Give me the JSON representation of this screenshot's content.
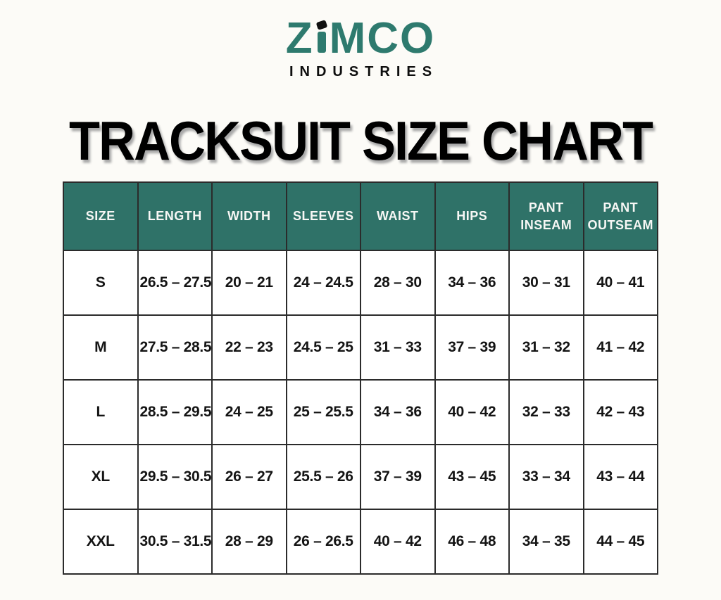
{
  "logo": {
    "brand_part1": "Z",
    "brand_part2": "MCO",
    "brand_full": "ZIMCO",
    "subtitle": "INDUSTRIES"
  },
  "title": "TRACKSUIT SIZE CHART",
  "colors": {
    "logo_teal": "#2E7A6E",
    "header_teal": "#2F7268",
    "page_background": "#FCFBF7",
    "grid_line": "#2B2B2B"
  },
  "table": {
    "columns": [
      "SIZE",
      "LENGTH",
      "WIDTH",
      "SLEEVES",
      "WAIST",
      "HIPS",
      "PANT INSEAM",
      "PANT OUTSEAM"
    ],
    "rows": [
      {
        "size": "S",
        "length": "26.5 – 27.5",
        "width": "20 – 21",
        "sleeves": "24 – 24.5",
        "waist": "28 – 30",
        "hips": "34 – 36",
        "pant_inseam": "30 – 31",
        "pant_outseam": "40 – 41"
      },
      {
        "size": "M",
        "length": "27.5 – 28.5",
        "width": "22 – 23",
        "sleeves": "24.5 – 25",
        "waist": "31 – 33",
        "hips": "37 – 39",
        "pant_inseam": "31 – 32",
        "pant_outseam": "41 – 42"
      },
      {
        "size": "L",
        "length": "28.5 – 29.5",
        "width": "24 – 25",
        "sleeves": "25 – 25.5",
        "waist": "34 – 36",
        "hips": "40 – 42",
        "pant_inseam": "32 – 33",
        "pant_outseam": "42 – 43"
      },
      {
        "size": "XL",
        "length": "29.5 – 30.5",
        "width": "26 – 27",
        "sleeves": "25.5 – 26",
        "waist": "37 – 39",
        "hips": "43 – 45",
        "pant_inseam": "33 – 34",
        "pant_outseam": "43 – 44"
      },
      {
        "size": "XXL",
        "length": "30.5 – 31.5",
        "width": "28 – 29",
        "sleeves": "26 – 26.5",
        "waist": "40 – 42",
        "hips": "46 – 48",
        "pant_inseam": "34 – 35",
        "pant_outseam": "44 – 45"
      }
    ]
  }
}
